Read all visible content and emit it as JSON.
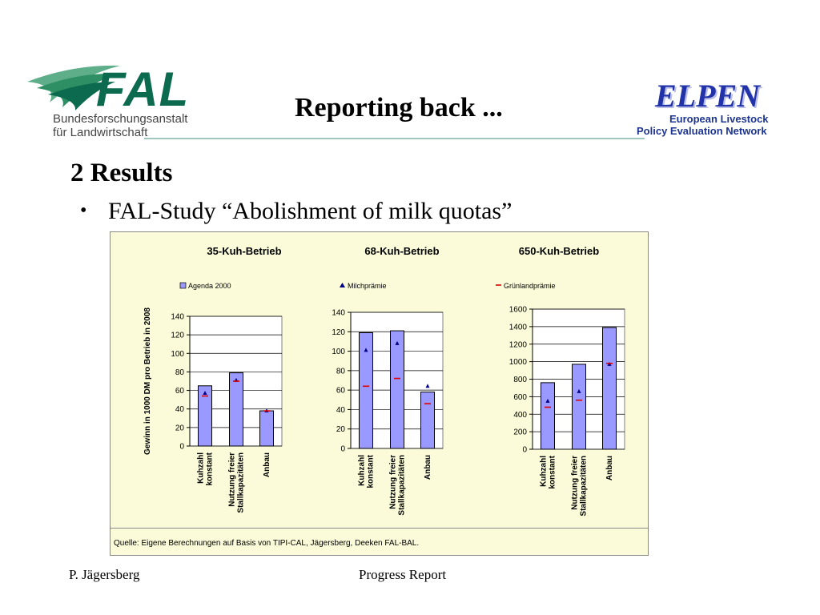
{
  "header": {
    "title": "Reporting back ...",
    "fal": {
      "word": "FAL",
      "line1": "Bundesforschungsanstalt",
      "line2": "für Landwirtschaft"
    },
    "elpen": {
      "word": "ELPEN",
      "line1": "European Livestock",
      "line2": "Policy Evaluation Network"
    }
  },
  "body": {
    "heading": "2 Results",
    "bullet": "FAL-Study “Abolishment of milk quotas”"
  },
  "colors": {
    "bar": "#9999ff",
    "triangle": "#00008b",
    "dash": "#e00000",
    "panel": "#fbfbd9"
  },
  "legend": {
    "items": [
      {
        "label": "Agenda 2000",
        "marker": "square"
      },
      {
        "label": "Milchprämie",
        "marker": "triangle"
      },
      {
        "label": "Grünlandprämie",
        "marker": "dash"
      }
    ]
  },
  "chart_data": [
    {
      "type": "bar",
      "title": "35-Kuh-Betrieb",
      "ylabel": "Gewinn in 1000 DM pro Betrieb in 2008",
      "ylim": [
        0,
        140
      ],
      "yticks": [
        0,
        20,
        40,
        60,
        80,
        100,
        120,
        140
      ],
      "categories": [
        [
          "Kuhzahl",
          "konstant"
        ],
        [
          "Nutzung freier",
          "Stallkapazitäten"
        ],
        [
          "Anbau"
        ]
      ],
      "series": [
        {
          "name": "Agenda 2000",
          "values": [
            65,
            79,
            38
          ]
        },
        {
          "name": "Milchprämie",
          "values": [
            57,
            71,
            38
          ]
        },
        {
          "name": "Grünlandprämie",
          "values": [
            54,
            70,
            38
          ]
        }
      ]
    },
    {
      "type": "bar",
      "title": "68-Kuh-Betrieb",
      "ylim": [
        0,
        140
      ],
      "yticks": [
        0,
        20,
        40,
        60,
        80,
        100,
        120,
        140
      ],
      "categories": [
        [
          "Kuhzahl",
          "konstant"
        ],
        [
          "Nutzung freier",
          "Stallkapazitäten"
        ],
        [
          "Anbau"
        ]
      ],
      "series": [
        {
          "name": "Agenda 2000",
          "values": [
            119,
            121,
            58
          ]
        },
        {
          "name": "Milchprämie",
          "values": [
            101,
            108,
            64
          ]
        },
        {
          "name": "Grünlandprämie",
          "values": [
            64,
            72,
            46
          ]
        }
      ]
    },
    {
      "type": "bar",
      "title": "650-Kuh-Betrieb",
      "ylim": [
        0,
        1600
      ],
      "yticks": [
        0,
        200,
        400,
        600,
        800,
        1000,
        1200,
        1400,
        1600
      ],
      "categories": [
        [
          "Kuhzahl",
          "konstant"
        ],
        [
          "Nutzung freier",
          "Stallkapazitäten"
        ],
        [
          "Anbau"
        ]
      ],
      "series": [
        {
          "name": "Agenda 2000",
          "values": [
            760,
            970,
            1390
          ]
        },
        {
          "name": "Milchprämie",
          "values": [
            550,
            660,
            970
          ]
        },
        {
          "name": "Grünlandprämie",
          "values": [
            480,
            560,
            980
          ]
        }
      ]
    }
  ],
  "source": "Quelle: Eigene Berechnungen auf Basis von TIPI-CAL, Jägersberg, Deeken  FAL-BAL.",
  "footer": {
    "left": "P. Jägersberg",
    "center": "Progress Report"
  }
}
